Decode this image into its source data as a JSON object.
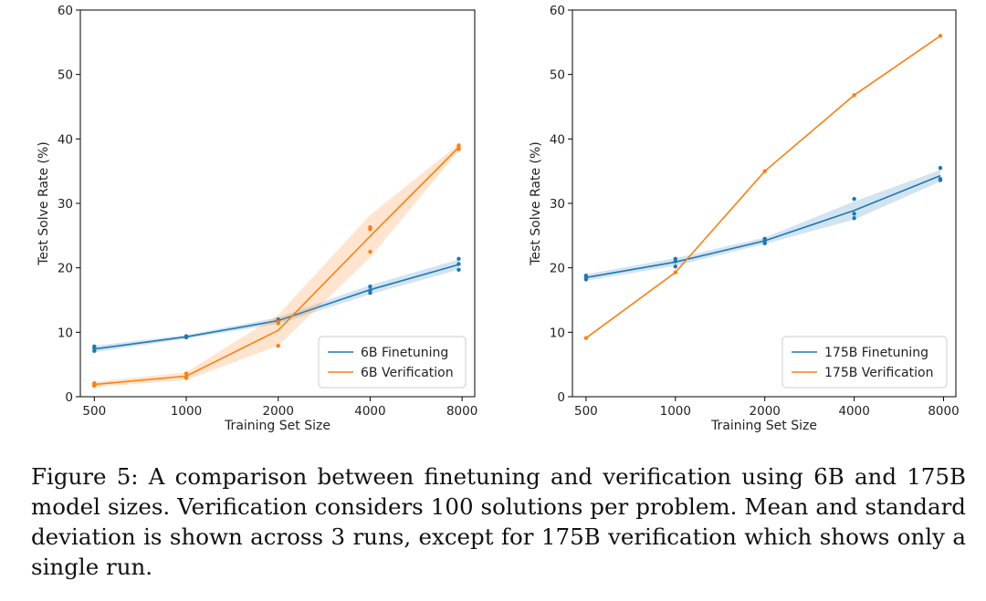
{
  "chart_data": [
    {
      "type": "line",
      "xlabel": "Training Set Size",
      "ylabel": "Test Solve Rate (%)",
      "xscale": "log",
      "xlim": [
        450,
        8800
      ],
      "ylim": [
        0,
        60
      ],
      "xticks": [
        500,
        1000,
        2000,
        4000,
        8000
      ],
      "xtick_labels": [
        "500",
        "1000",
        "2000",
        "4000",
        "8000"
      ],
      "yticks": [
        0,
        10,
        20,
        30,
        40,
        50,
        60
      ],
      "ytick_labels": [
        "0",
        "10",
        "20",
        "30",
        "40",
        "50",
        "60"
      ],
      "grid": false,
      "legend_position": "lower-right",
      "series": [
        {
          "name": "6B Finetuning",
          "color": "#1f77b4",
          "x": [
            500,
            1000,
            2000,
            4000,
            7800
          ],
          "mean": [
            7.4,
            9.3,
            11.8,
            16.6,
            20.5
          ],
          "lower": [
            6.9,
            9.0,
            11.3,
            15.9,
            19.7
          ],
          "upper": [
            7.9,
            9.6,
            12.3,
            17.3,
            21.3
          ],
          "runs": [
            [
              7.1,
              7.5,
              7.8
            ],
            [
              9.2,
              9.3,
              9.4
            ],
            [
              11.6,
              11.8,
              12.0
            ],
            [
              16.1,
              16.5,
              17.1
            ],
            [
              19.7,
              20.6,
              21.4
            ]
          ]
        },
        {
          "name": "6B Verification",
          "color": "#ff7f0e",
          "x": [
            500,
            1000,
            2000,
            4000,
            7800
          ],
          "mean": [
            1.9,
            3.2,
            10.3,
            24.9,
            38.7
          ],
          "lower": [
            1.5,
            2.6,
            7.9,
            21.6,
            38.2
          ],
          "upper": [
            2.3,
            3.8,
            12.7,
            28.2,
            39.2
          ],
          "runs": [
            [
              1.7,
              1.9,
              2.1
            ],
            [
              2.9,
              3.1,
              3.6
            ],
            [
              7.9,
              11.4,
              11.6
            ],
            [
              22.5,
              26.0,
              26.3
            ],
            [
              38.4,
              38.7,
              39.0
            ]
          ]
        }
      ]
    },
    {
      "type": "line",
      "xlabel": "Training Set Size",
      "ylabel": "Test Solve Rate (%)",
      "xscale": "log",
      "xlim": [
        450,
        8800
      ],
      "ylim": [
        0,
        60
      ],
      "xticks": [
        500,
        1000,
        2000,
        4000,
        8000
      ],
      "xtick_labels": [
        "500",
        "1000",
        "2000",
        "4000",
        "8000"
      ],
      "yticks": [
        0,
        10,
        20,
        30,
        40,
        50,
        60
      ],
      "ytick_labels": [
        "0",
        "10",
        "20",
        "30",
        "40",
        "50",
        "60"
      ],
      "grid": false,
      "legend_position": "lower-right",
      "series": [
        {
          "name": "175B Finetuning",
          "color": "#1f77b4",
          "x": [
            500,
            1000,
            2000,
            4000,
            7800
          ],
          "mean": [
            18.5,
            20.9,
            24.2,
            28.9,
            34.3
          ],
          "lower": [
            18.0,
            20.3,
            23.7,
            27.5,
            33.4
          ],
          "upper": [
            19.0,
            21.5,
            24.7,
            30.3,
            35.2
          ],
          "runs": [
            [
              18.2,
              18.5,
              18.8
            ],
            [
              20.2,
              21.0,
              21.4
            ],
            [
              23.8,
              24.2,
              24.5
            ],
            [
              27.7,
              28.4,
              30.7
            ],
            [
              33.6,
              33.8,
              35.5
            ]
          ]
        },
        {
          "name": "175B Verification",
          "color": "#ff7f0e",
          "x": [
            500,
            1000,
            2000,
            4000,
            7800
          ],
          "mean": [
            9.1,
            19.3,
            35.0,
            46.8,
            56.0
          ],
          "runs": [
            [
              9.1
            ],
            [
              19.3
            ],
            [
              35.0
            ],
            [
              46.8
            ],
            [
              56.0
            ]
          ]
        }
      ]
    }
  ],
  "caption": "Figure 5: A comparison between finetuning and verification using 6B and 175B model sizes. Verification considers 100 solutions per problem. Mean and standard deviation is shown across 3 runs, except for 175B verification which shows only a single run."
}
